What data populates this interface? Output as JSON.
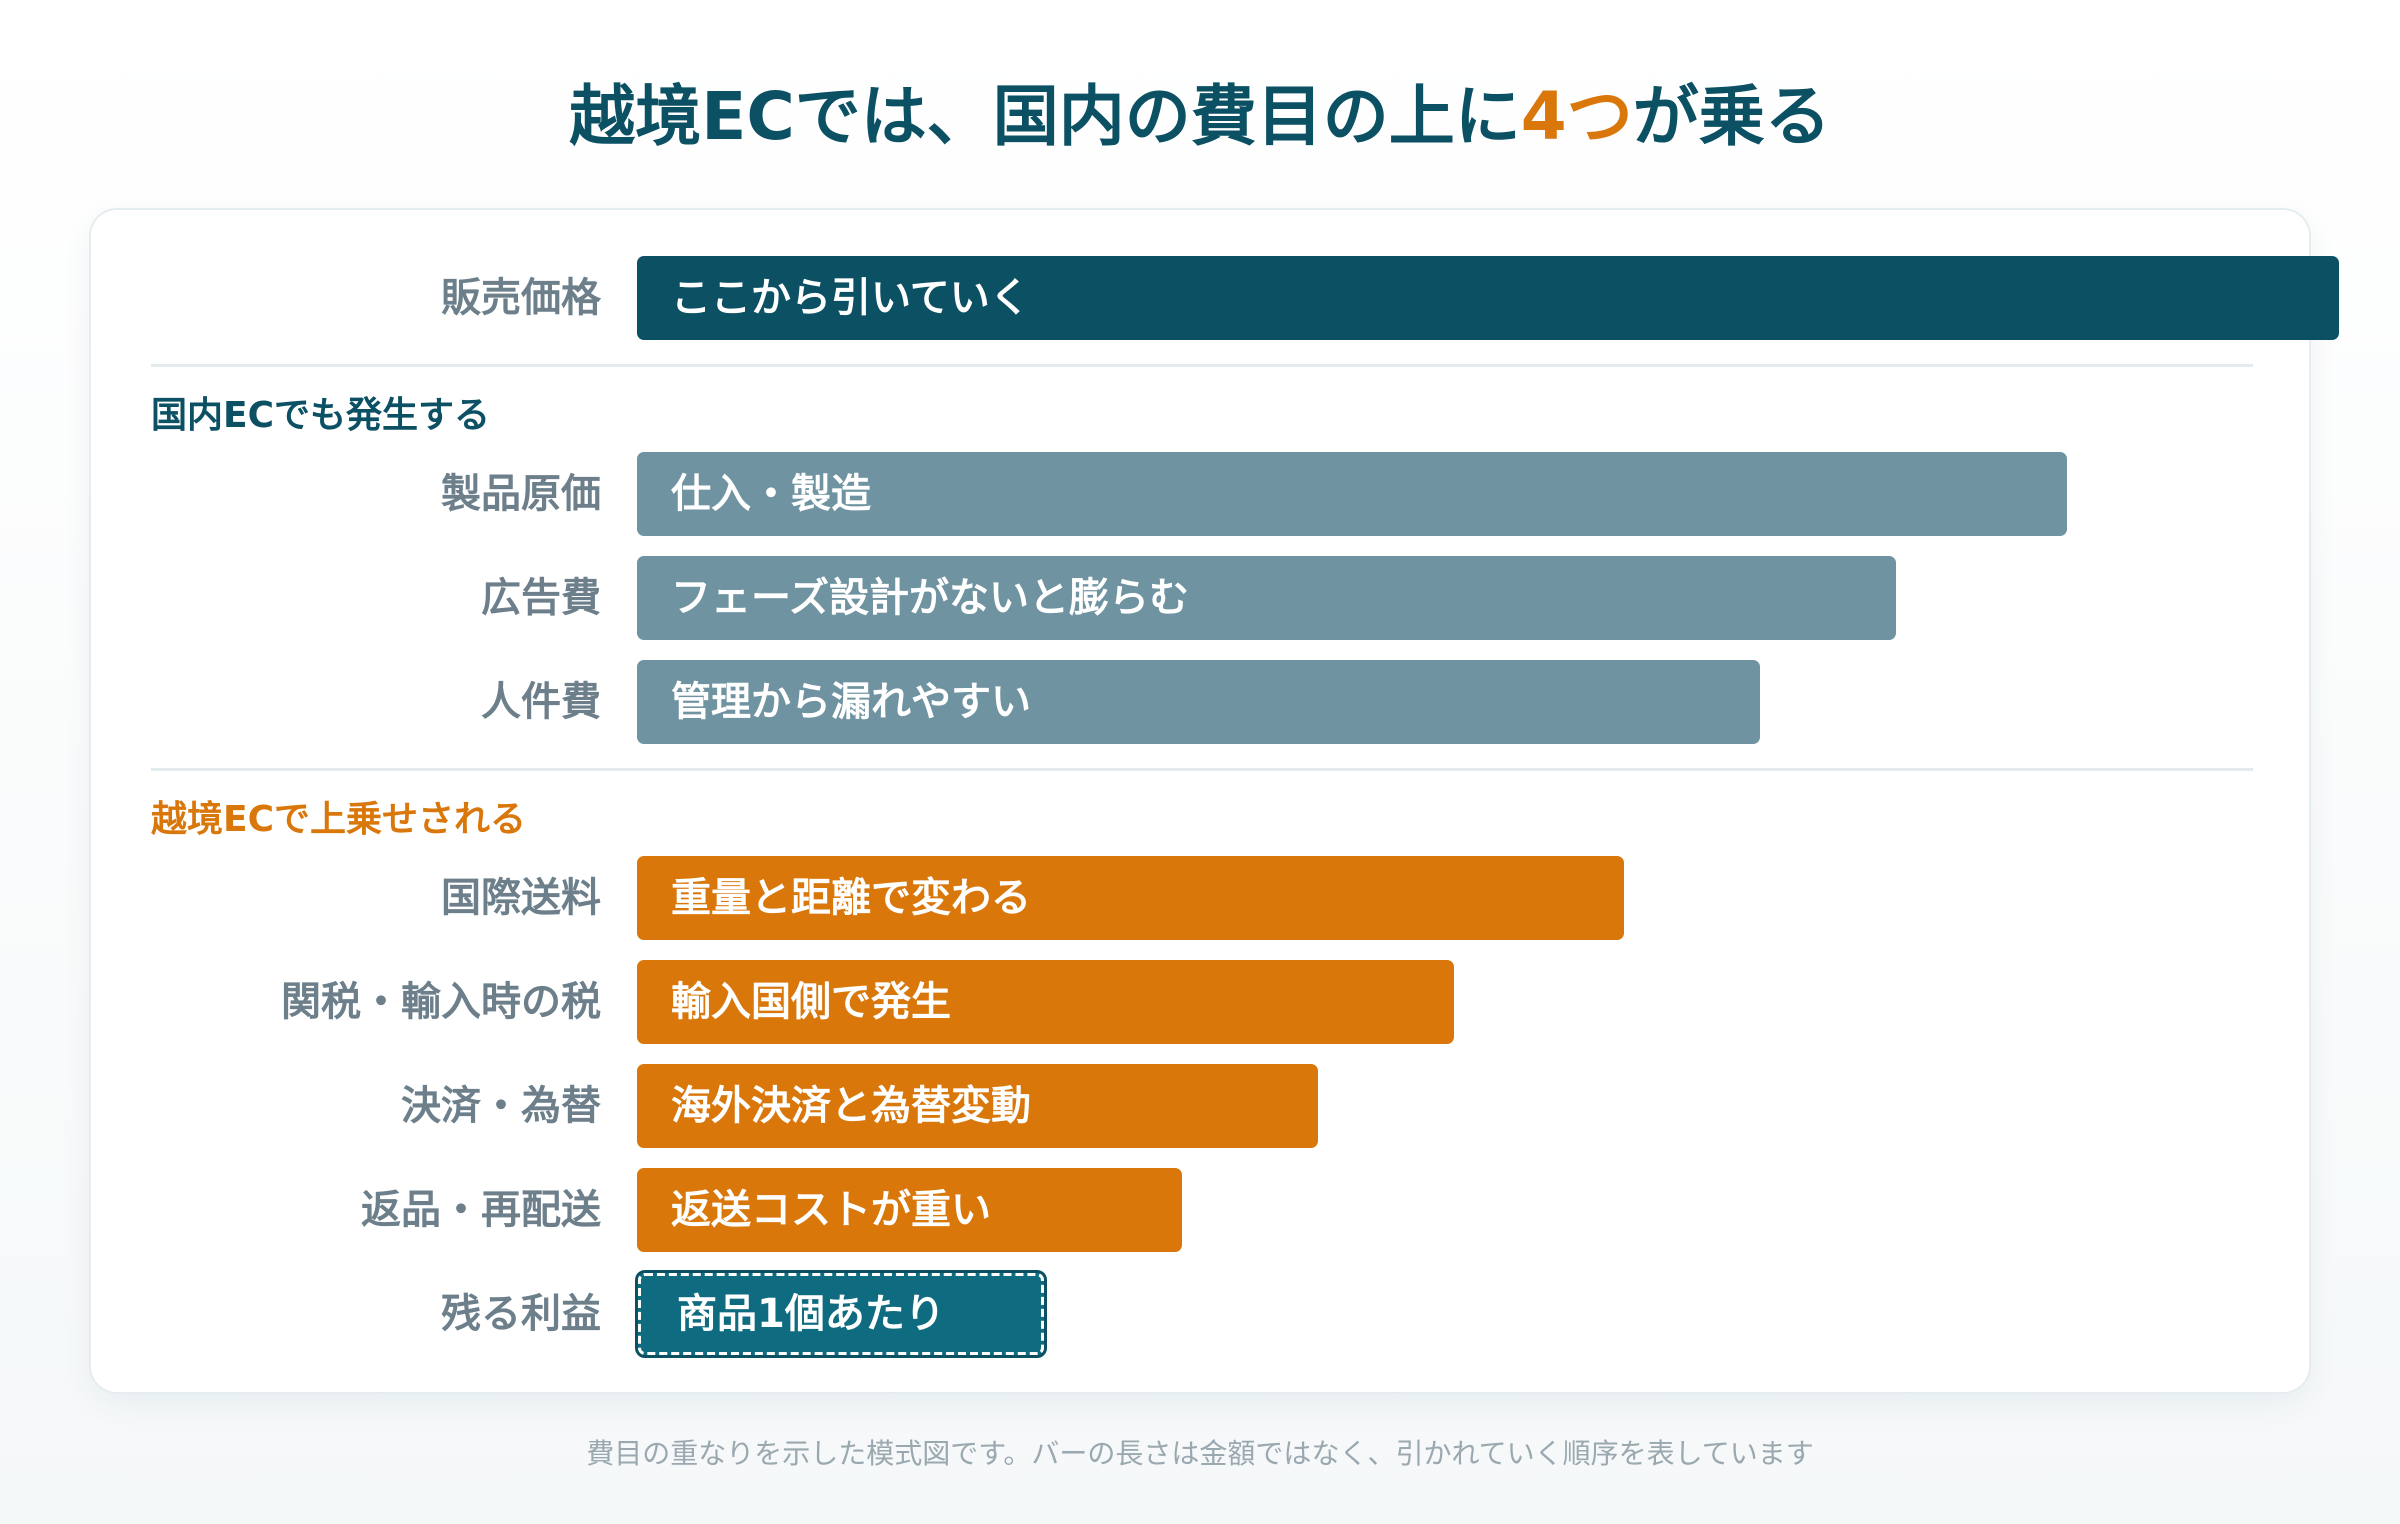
{
  "title": {
    "before": "越境ECでは、国内の費目の上に",
    "highlight": "4つ",
    "after": "が乗る"
  },
  "colors": {
    "primary": "#0b5063",
    "domestic": "#6f93a1",
    "cross_border": "#d9770b",
    "profit": "#0f6b80"
  },
  "top_row": {
    "label": "販売価格",
    "bar_text": "ここから引いていく",
    "relative_length": 1.0
  },
  "sections": [
    {
      "heading": "国内ECでも発生する",
      "rows": [
        {
          "label": "製品原価",
          "bar_text": "仕入・製造",
          "relative_length": 0.84
        },
        {
          "label": "広告費",
          "bar_text": "フェーズ設計がないと膨らむ",
          "relative_length": 0.74
        },
        {
          "label": "人件費",
          "bar_text": "管理から漏れやすい",
          "relative_length": 0.66
        }
      ]
    },
    {
      "heading": "越境ECで上乗せされる",
      "rows": [
        {
          "label": "国際送料",
          "bar_text": "重量と距離で変わる",
          "relative_length": 0.58
        },
        {
          "label": "関税・輸入時の税",
          "bar_text": "輸入国側で発生",
          "relative_length": 0.48
        },
        {
          "label": "決済・為替",
          "bar_text": "海外決済と為替変動",
          "relative_length": 0.4
        },
        {
          "label": "返品・再配送",
          "bar_text": "返送コストが重い",
          "relative_length": 0.32
        }
      ]
    }
  ],
  "profit_row": {
    "label": "残る利益",
    "bar_text": "商品1個あたり",
    "relative_length": 0.24
  },
  "footnote": "費目の重なりを示した模式図です。バーの長さは金額ではなく、引かれていく順序を表しています"
}
